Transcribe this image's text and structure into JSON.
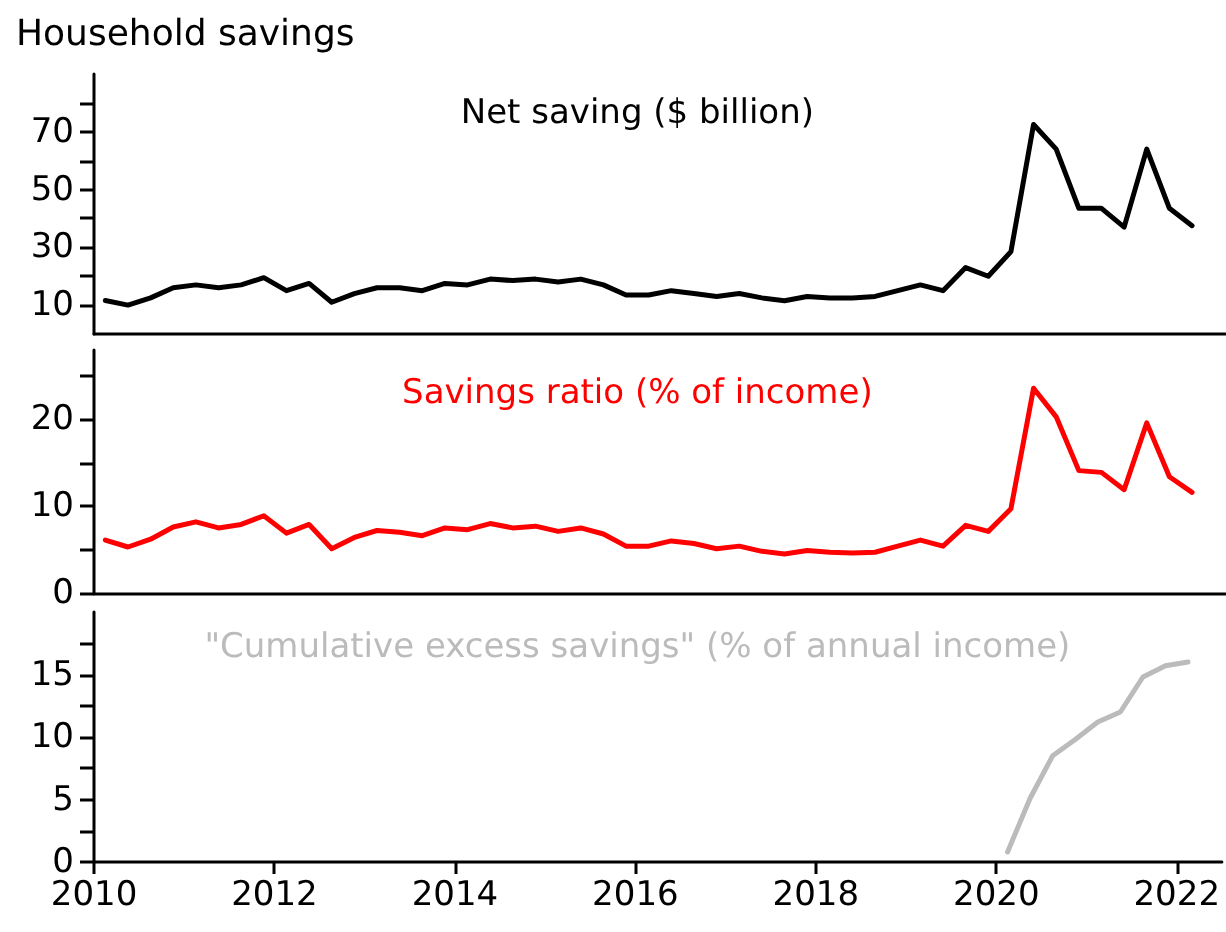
{
  "chart_data": [
    {
      "type": "line",
      "title": "Household savings",
      "xlim": [
        2010,
        2022.5
      ],
      "ylim": [
        0,
        90
      ],
      "yticks": [
        10,
        {
          "value": 20,
          "label": null
        },
        30,
        {
          "value": 40,
          "label": null
        },
        50,
        {
          "value": 60,
          "label": null
        },
        70,
        {
          "value": 80,
          "label": null
        }
      ],
      "tick_labels": "y",
      "grid": false,
      "legend": false,
      "marker": "none",
      "line_style": "solid",
      "series": [
        {
          "name": "Net saving ($ billion)",
          "color": "#000000",
          "x": [
            2010.125,
            2010.375,
            2010.625,
            2010.875,
            2011.125,
            2011.375,
            2011.625,
            2011.875,
            2012.125,
            2012.375,
            2012.625,
            2012.875,
            2013.125,
            2013.375,
            2013.625,
            2013.875,
            2014.125,
            2014.375,
            2014.625,
            2014.875,
            2015.125,
            2015.375,
            2015.625,
            2015.875,
            2016.125,
            2016.375,
            2016.625,
            2016.875,
            2017.125,
            2017.375,
            2017.625,
            2017.875,
            2018.125,
            2018.375,
            2018.625,
            2018.875,
            2019.125,
            2019.375,
            2019.625,
            2019.875,
            2020.125,
            2020.375,
            2020.625,
            2020.875,
            2021.125,
            2021.375,
            2021.625,
            2021.875,
            2022.125
          ],
          "values": [
            11.6,
            10,
            12.5,
            16,
            17,
            16,
            17,
            19.5,
            15,
            17.5,
            11,
            14,
            16,
            16,
            15,
            17.5,
            17,
            19,
            18.5,
            19,
            18,
            19,
            17,
            13.5,
            13.5,
            15,
            14,
            13,
            14,
            12.5,
            11.5,
            13,
            12.5,
            12.5,
            13,
            15,
            17,
            15,
            23,
            20,
            28.5,
            72.5,
            64,
            43.5,
            43.5,
            37,
            64,
            43.5,
            37.5
          ]
        }
      ]
    },
    {
      "type": "line",
      "xlim": [
        2010,
        2022.5
      ],
      "ylim": [
        0,
        28
      ],
      "yticks": [
        0,
        {
          "value": 5,
          "label": null
        },
        10,
        {
          "value": 15,
          "label": null
        },
        20,
        {
          "value": 25,
          "label": null
        }
      ],
      "tick_labels": "y",
      "grid": false,
      "legend": false,
      "marker": "none",
      "line_style": "solid",
      "series": [
        {
          "name": "Savings ratio (% of income)",
          "color": "#ff0000",
          "x": [
            2010.125,
            2010.375,
            2010.625,
            2010.875,
            2011.125,
            2011.375,
            2011.625,
            2011.875,
            2012.125,
            2012.375,
            2012.625,
            2012.875,
            2013.125,
            2013.375,
            2013.625,
            2013.875,
            2014.125,
            2014.375,
            2014.625,
            2014.875,
            2015.125,
            2015.375,
            2015.625,
            2015.875,
            2016.125,
            2016.375,
            2016.625,
            2016.875,
            2017.125,
            2017.375,
            2017.625,
            2017.875,
            2018.125,
            2018.375,
            2018.625,
            2018.875,
            2019.125,
            2019.375,
            2019.625,
            2019.875,
            2020.125,
            2020.375,
            2020.625,
            2020.875,
            2021.125,
            2021.375,
            2021.625,
            2021.875,
            2022.125
          ],
          "values": [
            6.1,
            5.3,
            6.2,
            7.6,
            8.2,
            7.5,
            7.9,
            8.9,
            6.9,
            7.9,
            5.1,
            6.4,
            7.2,
            7,
            6.6,
            7.5,
            7.3,
            8,
            7.5,
            7.7,
            7.1,
            7.5,
            6.8,
            5.4,
            5.4,
            6,
            5.7,
            5.1,
            5.4,
            4.8,
            4.5,
            4.9,
            4.7,
            4.6,
            4.7,
            5.4,
            6.1,
            5.4,
            7.8,
            7.1,
            9.7,
            23.6,
            20.3,
            14.1,
            13.9,
            11.9,
            19.6,
            13.4,
            11.6
          ]
        }
      ]
    },
    {
      "type": "line",
      "xlim": [
        2010,
        2022.5
      ],
      "xticks": [
        2010,
        2012,
        2014,
        2016,
        2018,
        2020,
        2022
      ],
      "ylim": [
        0,
        20
      ],
      "yticks": [
        0,
        {
          "value": 2.5,
          "label": null
        },
        5,
        {
          "value": 7.5,
          "label": null
        },
        10,
        {
          "value": 12.5,
          "label": null
        },
        15,
        {
          "value": 17.5,
          "label": null
        }
      ],
      "grid": false,
      "legend": false,
      "marker": "none",
      "line_style": "solid",
      "series": [
        {
          "name": "\"Cumulative excess savings\" (% of annual income)",
          "color": "#bbbbbb",
          "x": [
            2020.125,
            2020.375,
            2020.625,
            2020.875,
            2021.125,
            2021.375,
            2021.625,
            2021.875,
            2022.125
          ],
          "values": [
            0.8,
            5.1,
            8.5,
            9.8,
            11.2,
            12,
            14.8,
            15.7,
            16
          ]
        }
      ]
    }
  ]
}
